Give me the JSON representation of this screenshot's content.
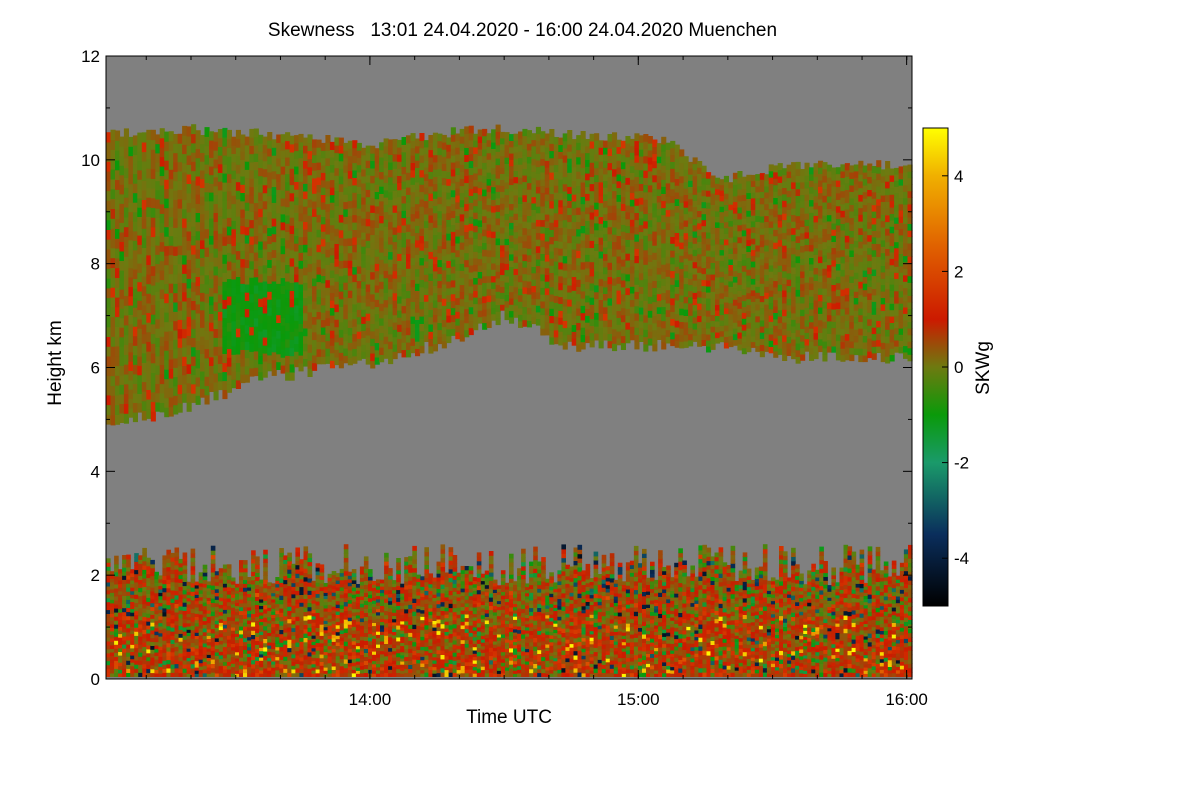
{
  "chart_data": {
    "type": "heatmap",
    "title": "Skewness   13:01 24.04.2020 - 16:00 24.04.2020 Muenchen",
    "xlabel": "Time UTC",
    "ylabel": "Height km",
    "x_range": [
      "13:01",
      "16:00"
    ],
    "x_ticks": [
      {
        "label": "14:00",
        "value": 14.0
      },
      {
        "label": "15:00",
        "value": 15.0
      },
      {
        "label": "16:00",
        "value": 16.0
      }
    ],
    "x_minor_step_hours": 0.1667,
    "ylim": [
      0,
      12
    ],
    "y_ticks": [
      0,
      2,
      4,
      6,
      8,
      10,
      12
    ],
    "colorbar": {
      "label": "SKWg",
      "range": [
        -5,
        5
      ],
      "ticks": [
        -4,
        -2,
        0,
        2,
        4
      ],
      "stops": [
        {
          "v": -5,
          "color": "#000000"
        },
        {
          "v": -3.5,
          "color": "#0a2e5c"
        },
        {
          "v": -2,
          "color": "#1a9a6a"
        },
        {
          "v": -1,
          "color": "#0a9a0a"
        },
        {
          "v": 0,
          "color": "#6e7a10"
        },
        {
          "v": 1,
          "color": "#cc1a00"
        },
        {
          "v": 2.5,
          "color": "#e06000"
        },
        {
          "v": 4,
          "color": "#f0b000"
        },
        {
          "v": 5,
          "color": "#ffff00"
        }
      ]
    },
    "background_color": "#808080",
    "layers": [
      {
        "name": "boundary-layer",
        "bottom_km": 0.05,
        "top_km_range": [
          1.8,
          2.6
        ],
        "dominant_values": "0 to 2 (red/olive) with scattered yellow and dark-blue pixels"
      },
      {
        "name": "cirrus-cloud",
        "bottom_km": [
          {
            "t": 13.02,
            "h": 4.9
          },
          {
            "t": 13.3,
            "h": 5.2
          },
          {
            "t": 13.6,
            "h": 5.8
          },
          {
            "t": 14.0,
            "h": 6.1
          },
          {
            "t": 14.3,
            "h": 6.5
          },
          {
            "t": 14.5,
            "h": 7.0
          },
          {
            "t": 14.75,
            "h": 6.4
          },
          {
            "t": 15.2,
            "h": 6.45
          },
          {
            "t": 15.6,
            "h": 6.2
          },
          {
            "t": 16.0,
            "h": 6.2
          }
        ],
        "top_km": [
          {
            "t": 13.02,
            "h": 10.5
          },
          {
            "t": 13.3,
            "h": 10.6
          },
          {
            "t": 13.6,
            "h": 10.5
          },
          {
            "t": 14.0,
            "h": 10.3
          },
          {
            "t": 14.4,
            "h": 10.6
          },
          {
            "t": 14.75,
            "h": 10.5
          },
          {
            "t": 15.1,
            "h": 10.4
          },
          {
            "t": 15.3,
            "h": 9.6
          },
          {
            "t": 15.55,
            "h": 9.9
          },
          {
            "t": 16.0,
            "h": 9.9
          }
        ],
        "dominant_values": "-1 to 1 (green/olive) with red streaks"
      }
    ]
  }
}
